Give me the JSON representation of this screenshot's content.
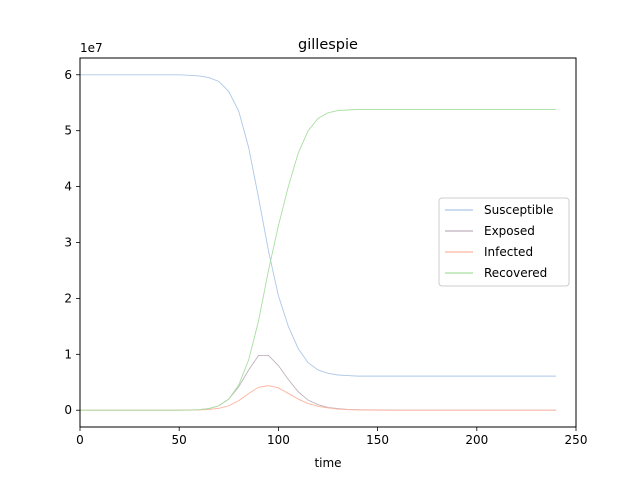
{
  "chart_data": {
    "type": "line",
    "title": "gillespie",
    "xlabel": "time",
    "ylabel": "",
    "y_offset_label": "1e7",
    "xlim": [
      0,
      250
    ],
    "ylim": [
      -0.3,
      6.3
    ],
    "y_scale_note": "values in units of 1e7",
    "xticks": [
      0,
      50,
      100,
      150,
      200,
      250
    ],
    "xtick_labels": [
      "0",
      "50",
      "100",
      "150",
      "200",
      "250"
    ],
    "yticks": [
      0,
      1,
      2,
      3,
      4,
      5,
      6
    ],
    "ytick_labels": [
      "0",
      "1",
      "2",
      "3",
      "4",
      "5",
      "6"
    ],
    "grid": false,
    "legend_position": "right",
    "x": [
      0,
      10,
      20,
      30,
      40,
      50,
      55,
      60,
      65,
      70,
      75,
      80,
      85,
      90,
      95,
      100,
      105,
      110,
      115,
      120,
      125,
      130,
      135,
      140,
      150,
      160,
      180,
      200,
      220,
      240
    ],
    "series": [
      {
        "name": "Susceptible",
        "color": "#aec7e8",
        "values": [
          6.0,
          6.0,
          6.0,
          6.0,
          6.0,
          6.0,
          5.99,
          5.98,
          5.95,
          5.88,
          5.7,
          5.35,
          4.7,
          3.8,
          2.85,
          2.05,
          1.5,
          1.1,
          0.85,
          0.72,
          0.66,
          0.63,
          0.62,
          0.61,
          0.61,
          0.61,
          0.61,
          0.61,
          0.61,
          0.61
        ]
      },
      {
        "name": "Exposed",
        "color": "#c0b2be",
        "values": [
          0,
          0,
          0,
          0,
          0,
          0,
          0.005,
          0.01,
          0.03,
          0.08,
          0.2,
          0.42,
          0.72,
          0.98,
          0.98,
          0.8,
          0.55,
          0.33,
          0.18,
          0.1,
          0.05,
          0.03,
          0.015,
          0.01,
          0.005,
          0,
          0,
          0,
          0,
          0
        ]
      },
      {
        "name": "Infected",
        "color": "#ffb4a0",
        "values": [
          0,
          0,
          0,
          0,
          0,
          0,
          0.002,
          0.005,
          0.015,
          0.035,
          0.08,
          0.17,
          0.3,
          0.41,
          0.44,
          0.4,
          0.3,
          0.2,
          0.12,
          0.07,
          0.04,
          0.02,
          0.01,
          0.005,
          0.002,
          0,
          0,
          0,
          0,
          0
        ]
      },
      {
        "name": "Recovered",
        "color": "#a8dfa0",
        "values": [
          0,
          0,
          0,
          0,
          0,
          0,
          0.003,
          0.01,
          0.03,
          0.08,
          0.2,
          0.45,
          0.9,
          1.6,
          2.5,
          3.3,
          4.0,
          4.6,
          5.0,
          5.22,
          5.32,
          5.36,
          5.37,
          5.38,
          5.38,
          5.38,
          5.38,
          5.38,
          5.38,
          5.38
        ]
      }
    ]
  }
}
